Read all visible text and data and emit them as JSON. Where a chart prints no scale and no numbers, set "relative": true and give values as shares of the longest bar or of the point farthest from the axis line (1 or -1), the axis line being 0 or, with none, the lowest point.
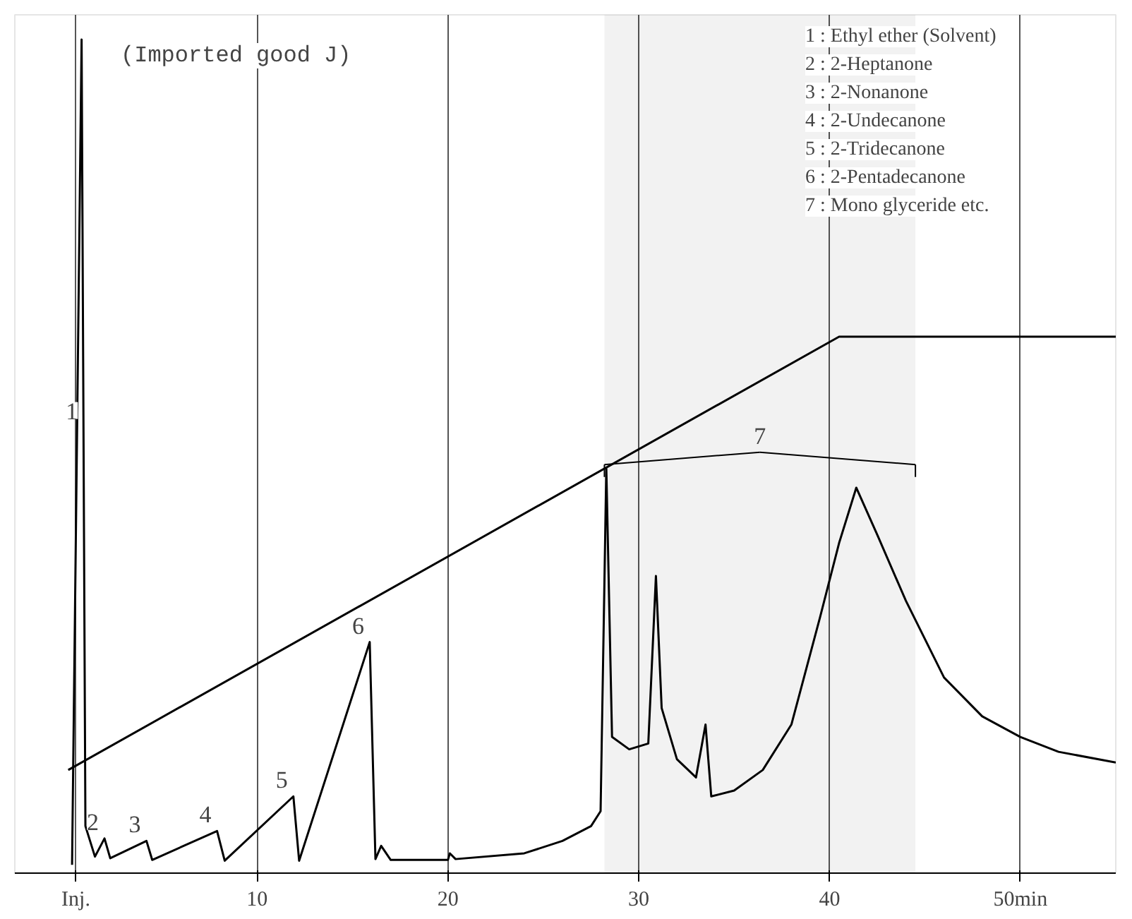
{
  "chart_data": {
    "type": "line",
    "relative": true,
    "title": "(Imported good J)",
    "xlim": [
      -2.7,
      55
    ],
    "xticks": [
      {
        "value": 0.5,
        "label": "Inj."
      },
      10,
      20,
      30,
      40,
      {
        "value": 50,
        "label": "50min"
      }
    ],
    "grid": "x",
    "marker": "none",
    "line_style": "solid",
    "tick_labels": "x",
    "series": [
      {
        "color": "#000000",
        "x": [
          0.3,
          0.8,
          1.0,
          1.5,
          2.0,
          2.3,
          4.2,
          4.5,
          7.9,
          8.3,
          11.9,
          12.2,
          15.9,
          16.2,
          16.5,
          17,
          20,
          20.1,
          20.4,
          24,
          26,
          27.5,
          28.0,
          28.3,
          28.6,
          29.5,
          30.5,
          30.9,
          31.2,
          32,
          33,
          33.5,
          33.8,
          35,
          36.5,
          38,
          39.5,
          40.5,
          41.4,
          42.5,
          44,
          46,
          48,
          50,
          52,
          55
        ],
        "values": [
          0,
          1.0,
          0.047,
          0.01,
          0.032,
          0.008,
          0.029,
          0.006,
          0.041,
          0.005,
          0.083,
          0.005,
          0.27,
          0.007,
          0.023,
          0.006,
          0.006,
          0.014,
          0.007,
          0.014,
          0.029,
          0.047,
          0.065,
          0.48,
          0.155,
          0.14,
          0.147,
          0.35,
          0.19,
          0.128,
          0.106,
          0.17,
          0.083,
          0.09,
          0.115,
          0.17,
          0.3,
          0.39,
          0.457,
          0.4,
          0.32,
          0.227,
          0.18,
          0.155,
          0.137,
          0.124
        ]
      },
      {
        "color": "#000000",
        "x": [
          0.1,
          40.5,
          55
        ],
        "values": [
          0.115,
          0.64,
          0.64
        ]
      }
    ],
    "bands": [
      {
        "axis": "x",
        "from": 28.2,
        "to": 44.5,
        "label": "7"
      }
    ],
    "annotations": [
      {
        "text": "1",
        "x": 0.9,
        "y": 0.53
      },
      {
        "text": "2",
        "x": 2.0,
        "y": 0.032
      },
      {
        "text": "3",
        "x": 4.2,
        "y": 0.029
      },
      {
        "text": "4",
        "x": 7.9,
        "y": 0.041
      },
      {
        "text": "5",
        "x": 11.9,
        "y": 0.083
      },
      {
        "text": "6",
        "x": 15.9,
        "y": 0.27
      },
      "1 : Ethyl ether (Solvent)",
      "2 : 2-Heptanone",
      "3 : 2-Nonanone",
      "4 : 2-Undecanone",
      "5 : 2-Tridecanone",
      "6 : 2-Pentadecanone",
      "7 : Mono glyceride etc."
    ]
  }
}
